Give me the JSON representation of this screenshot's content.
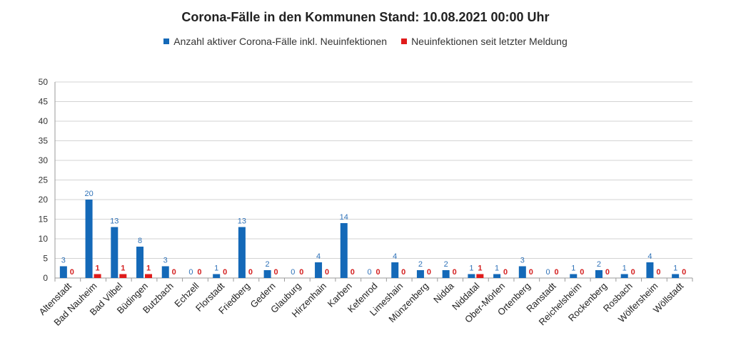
{
  "chart_data": {
    "type": "bar",
    "title": "Corona-Fälle in den Kommunen Stand: 10.08.2021 00:00 Uhr",
    "xlabel": "",
    "ylabel": "",
    "ylim": [
      0,
      50
    ],
    "yticks": [
      0,
      5,
      10,
      15,
      20,
      25,
      30,
      35,
      40,
      45,
      50
    ],
    "grid": true,
    "legend_position": "top-center",
    "categories": [
      "Altenstadt",
      "Bad Nauheim",
      "Bad Vilbel",
      "Büdingen",
      "Butzbach",
      "Echzell",
      "Florstadt",
      "Friedberg",
      "Gedern",
      "Glauburg",
      "Hirzenhain",
      "Karben",
      "Kefenrod",
      "Limeshain",
      "Münzenberg",
      "Nidda",
      "Niddatal",
      "Ober-Mörlen",
      "Ortenberg",
      "Ranstadt",
      "Reichelsheim",
      "Rockenberg",
      "Rosbach",
      "Wölfersheim",
      "Wöllstadt"
    ],
    "series": [
      {
        "name": "Anzahl aktiver Corona-Fälle inkl. Neuinfektionen",
        "color": "#1469b8",
        "label_color": "#2f72b8",
        "values": [
          3,
          20,
          13,
          8,
          3,
          0,
          1,
          13,
          2,
          0,
          4,
          14,
          0,
          4,
          2,
          2,
          1,
          1,
          3,
          0,
          1,
          2,
          1,
          4,
          1
        ]
      },
      {
        "name": "Neuinfektionen seit letzter Meldung",
        "color": "#e01b1b",
        "label_color": "#d42020",
        "values": [
          0,
          1,
          1,
          1,
          0,
          0,
          0,
          0,
          0,
          0,
          0,
          0,
          0,
          0,
          0,
          0,
          1,
          0,
          0,
          0,
          0,
          0,
          0,
          0,
          0
        ]
      }
    ]
  }
}
